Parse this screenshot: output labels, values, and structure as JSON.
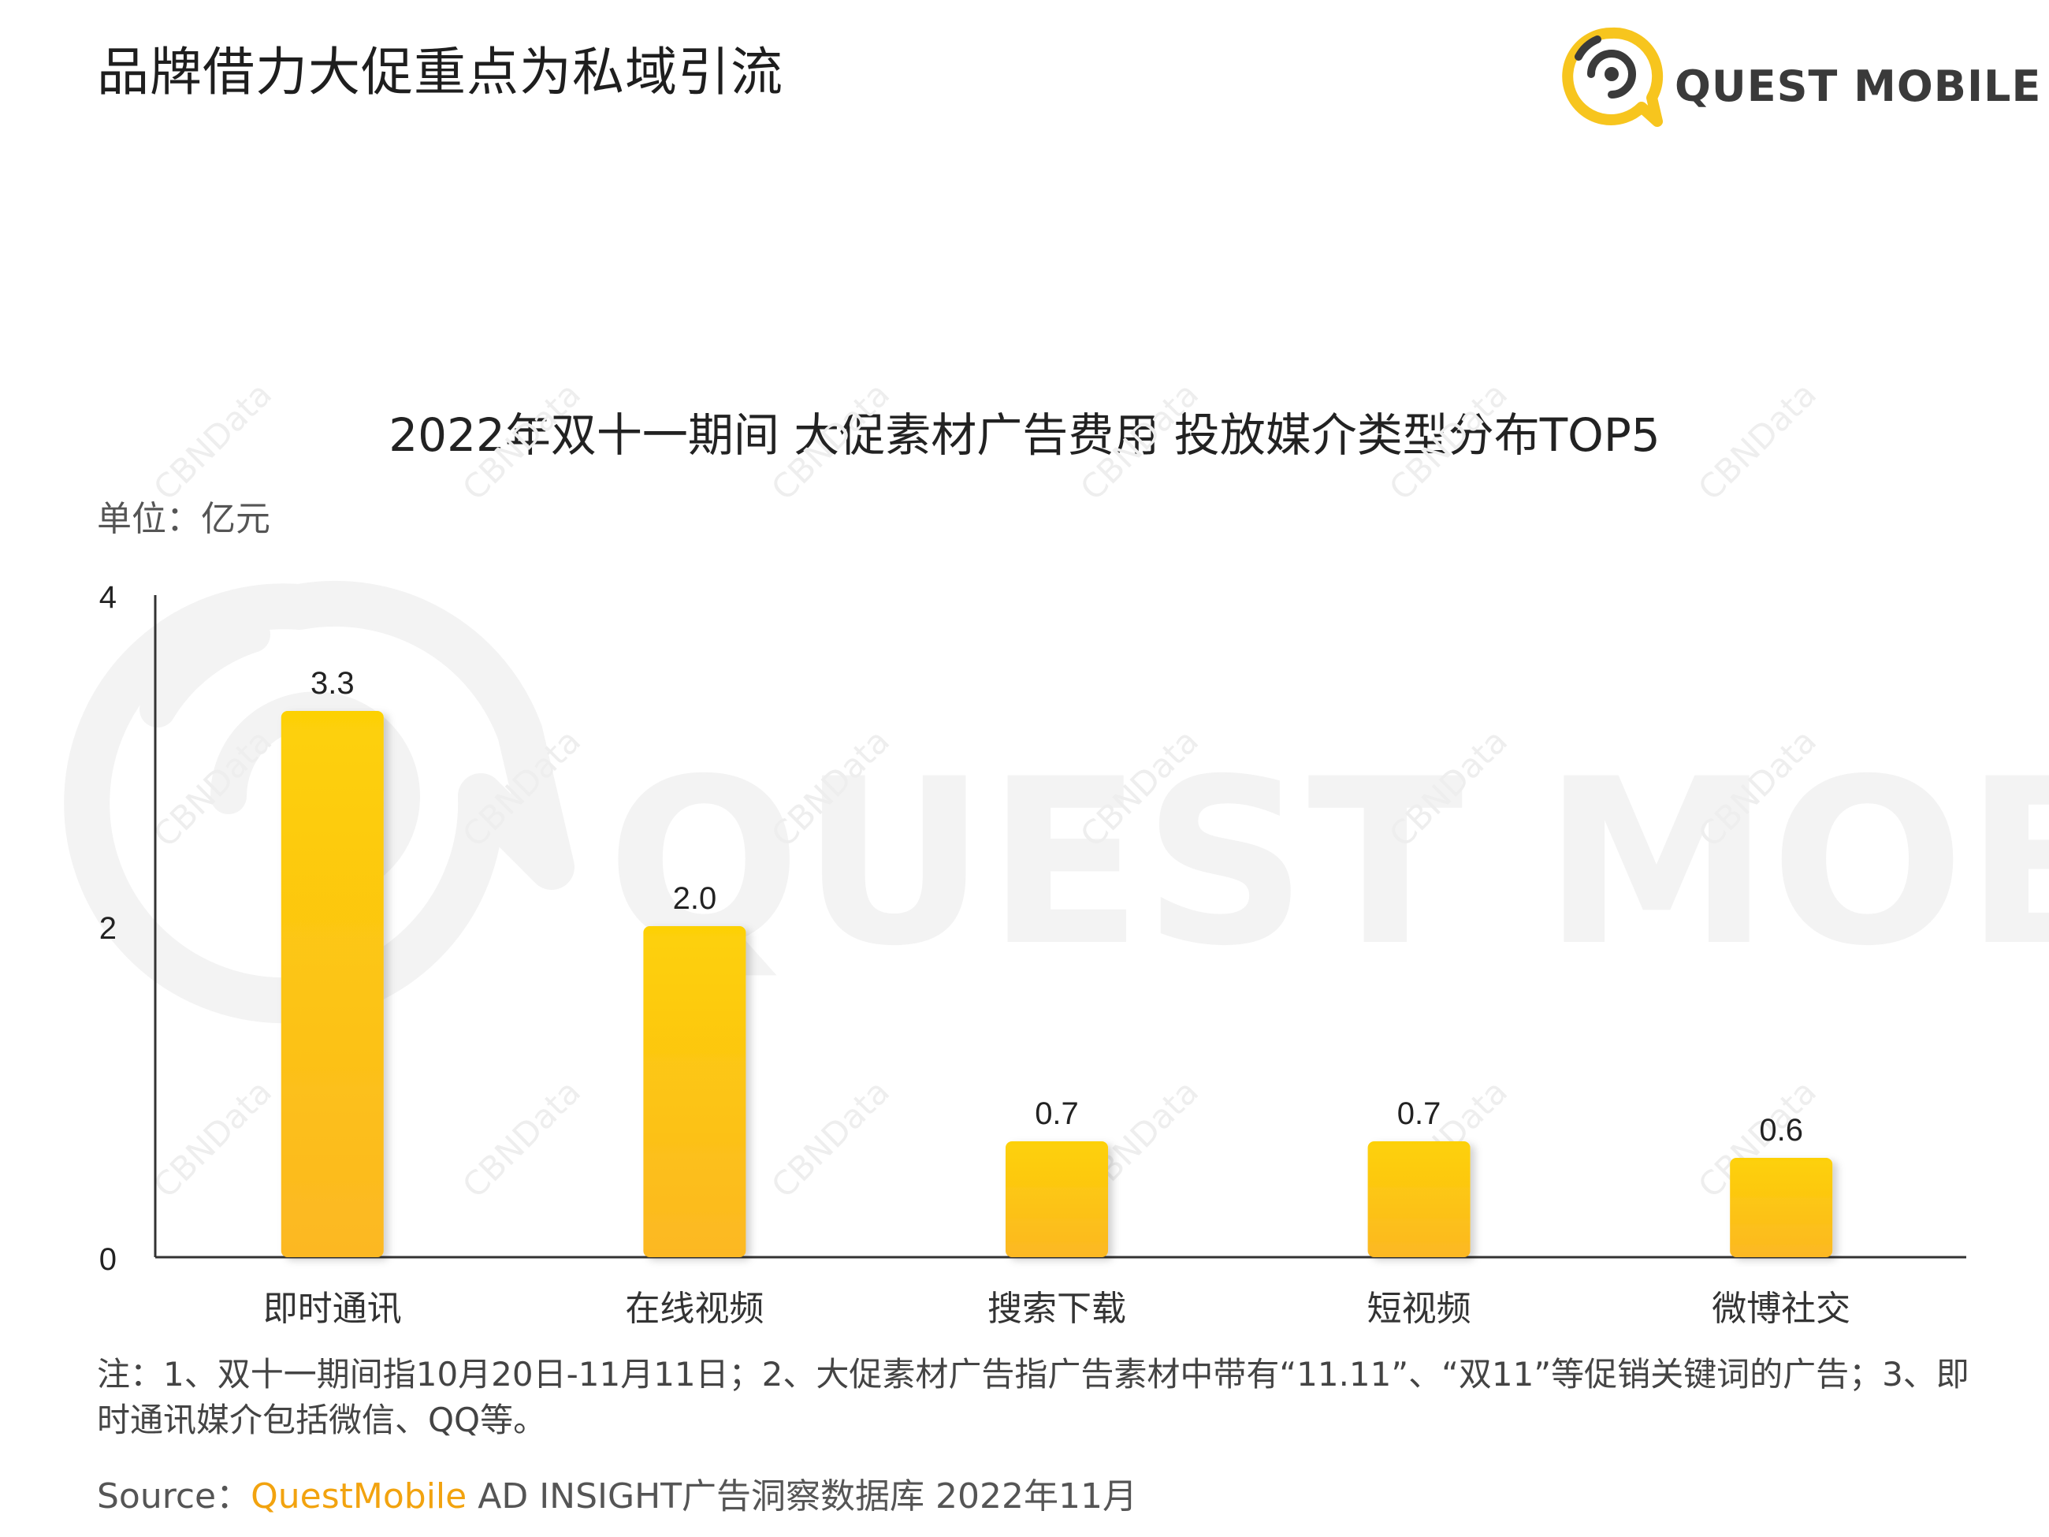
{
  "page_title": "品牌借力大促重点为私域引流",
  "logo": {
    "text": "QUEST MOBILE",
    "colors": {
      "ring": "#f7c51e",
      "dark": "#3a3a3a"
    }
  },
  "watermark": {
    "brand": "QUEST MOBILE",
    "tile": "CBNData"
  },
  "chart_data": {
    "type": "bar",
    "title": "2022年双十一期间 大促素材广告费用 投放媒介类型分布TOP5",
    "unit_label": "单位：亿元",
    "categories": [
      "即时通讯",
      "在线视频",
      "搜索下载",
      "短视频",
      "微博社交"
    ],
    "values": [
      3.3,
      2.0,
      0.7,
      0.7,
      0.6
    ],
    "value_labels": [
      "3.3",
      "2.0",
      "0.7",
      "0.7",
      "0.6"
    ],
    "ylim": [
      0,
      4
    ],
    "yticks": [
      0,
      2,
      4
    ],
    "grid": false,
    "colors": {
      "bar_top": "#fdd106",
      "bar_bottom": "#fcb823",
      "axis": "#333333"
    }
  },
  "note": "注：1、双十一期间指10月20日-11月11日；2、大促素材广告指广告素材中带有“11.11”、“双11”等促销关键词的广告；3、即时通讯媒介包括微信、QQ等。",
  "source": {
    "prefix": "Source：",
    "brand": "QuestMobile",
    "rest": " AD INSIGHT广告洞察数据库 2022年11月"
  }
}
